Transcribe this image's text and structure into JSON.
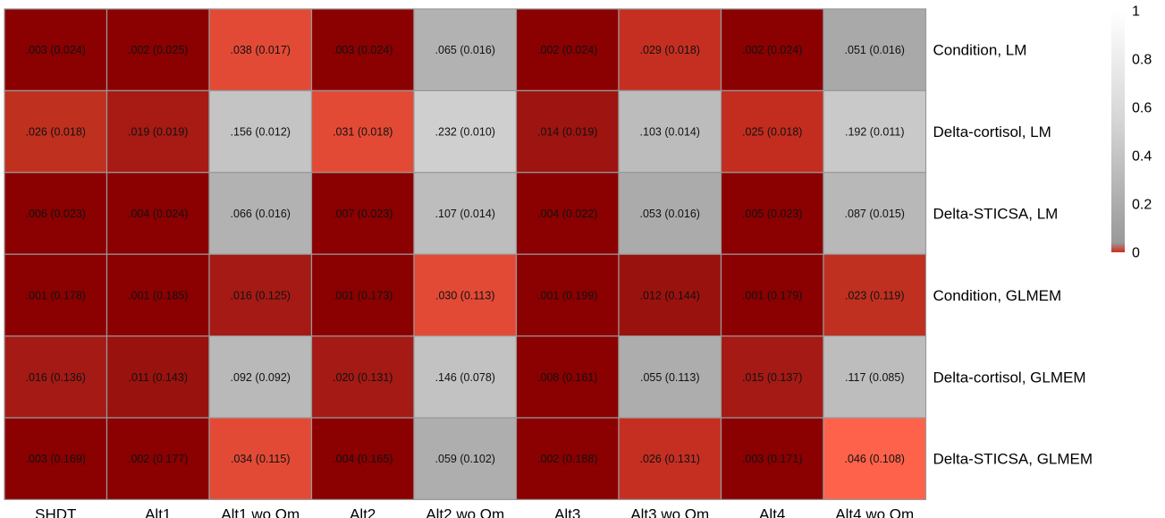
{
  "chart_data": {
    "type": "heatmap",
    "columns": [
      "SHDT",
      "Alt1",
      "Alt1 wo Om",
      "Alt2",
      "Alt2 wo Om",
      "Alt3",
      "Alt3 wo Om",
      "Alt4",
      "Alt4 wo Om"
    ],
    "rows": [
      "Condition, LM",
      "Delta-cortisol, LM",
      "Delta-STICSA, LM",
      "Condition, GLMEM",
      "Delta-cortisol, GLMEM",
      "Delta-STICSA, GLMEM"
    ],
    "values": [
      [
        0.003,
        0.002,
        0.038,
        0.003,
        0.065,
        0.002,
        0.029,
        0.002,
        0.051
      ],
      [
        0.026,
        0.019,
        0.156,
        0.031,
        0.232,
        0.014,
        0.103,
        0.025,
        0.192
      ],
      [
        0.006,
        0.004,
        0.066,
        0.007,
        0.107,
        0.004,
        0.053,
        0.005,
        0.087
      ],
      [
        0.001,
        0.001,
        0.016,
        0.001,
        0.03,
        0.001,
        0.012,
        0.001,
        0.023
      ],
      [
        0.016,
        0.011,
        0.092,
        0.02,
        0.146,
        0.008,
        0.055,
        0.015,
        0.117
      ],
      [
        0.003,
        0.002,
        0.034,
        0.004,
        0.059,
        0.002,
        0.026,
        0.003,
        0.046
      ]
    ],
    "cell_labels": [
      [
        ".003 (0.024)",
        ".002 (0.025)",
        ".038 (0.017)",
        ".003 (0.024)",
        ".065 (0.016)",
        ".002 (0.024)",
        ".029 (0.018)",
        ".002 (0.024)",
        ".051 (0.016)"
      ],
      [
        ".026 (0.018)",
        ".019 (0.019)",
        ".156 (0.012)",
        ".031 (0.018)",
        ".232 (0.010)",
        ".014 (0.019)",
        ".103 (0.014)",
        ".025 (0.018)",
        ".192 (0.011)"
      ],
      [
        ".006 (0.023)",
        ".004 (0.024)",
        ".066 (0.016)",
        ".007 (0.023)",
        ".107 (0.014)",
        ".004 (0.022)",
        ".053 (0.016)",
        ".005 (0.023)",
        ".087 (0.015)"
      ],
      [
        ".001 (0.178)",
        ".001 (0.185)",
        ".016 (0.125)",
        ".001 (0.173)",
        ".030 (0.113)",
        ".001 (0.199)",
        ".012 (0.144)",
        ".001 (0.179)",
        ".023 (0.119)"
      ],
      [
        ".016 (0.136)",
        ".011 (0.143)",
        ".092 (0.092)",
        ".020 (0.131)",
        ".146 (0.078)",
        ".008 (0.161)",
        ".055 (0.113)",
        ".015 (0.137)",
        ".117 (0.085)"
      ],
      [
        ".003 (0.169)",
        ".002 (0.177)",
        ".034 (0.115)",
        ".004 (0.165)",
        ".059 (0.102)",
        ".002 (0.188)",
        ".026 (0.131)",
        ".003 (0.171)",
        ".046 (0.108)"
      ]
    ],
    "cell_colors": [
      [
        "#8b0000",
        "#8b0000",
        "#e34a36",
        "#8b0000",
        "#b2b2b2",
        "#8b0000",
        "#c52f22",
        "#8b0000",
        "#a9a9a9"
      ],
      [
        "#c0301f",
        "#a81a14",
        "#c4c4c4",
        "#e34a36",
        "#cfcfcf",
        "#9e1410",
        "#bcbcbc",
        "#c32d1f",
        "#c9c9c9"
      ],
      [
        "#8b0000",
        "#8b0000",
        "#b2b2b2",
        "#8b0000",
        "#bdbdbd",
        "#8b0000",
        "#ababab",
        "#8b0000",
        "#b8b8b8"
      ],
      [
        "#8b0000",
        "#8b0000",
        "#a51a14",
        "#8b0000",
        "#e34a36",
        "#8b0000",
        "#9a120e",
        "#8b0000",
        "#bf3020"
      ],
      [
        "#a51a14",
        "#9a120e",
        "#b9b9b9",
        "#a51a14",
        "#c2c2c2",
        "#8b0000",
        "#adadad",
        "#a51a14",
        "#bdbdbd"
      ],
      [
        "#8b0000",
        "#8b0000",
        "#e34a36",
        "#8b0000",
        "#aeaeae",
        "#8b0000",
        "#c52f22",
        "#8b0000",
        "#ff624a"
      ]
    ],
    "legend": {
      "ticks": [
        1,
        0.8,
        0.6,
        0.4,
        0.2,
        0
      ],
      "tick_labels": [
        "1",
        "0.8",
        "0.6",
        "0.4",
        "0.2",
        "0"
      ],
      "colors": {
        "top": "#ffffff",
        "mid": "#999999",
        "bottom": "#d42b1e"
      }
    }
  }
}
